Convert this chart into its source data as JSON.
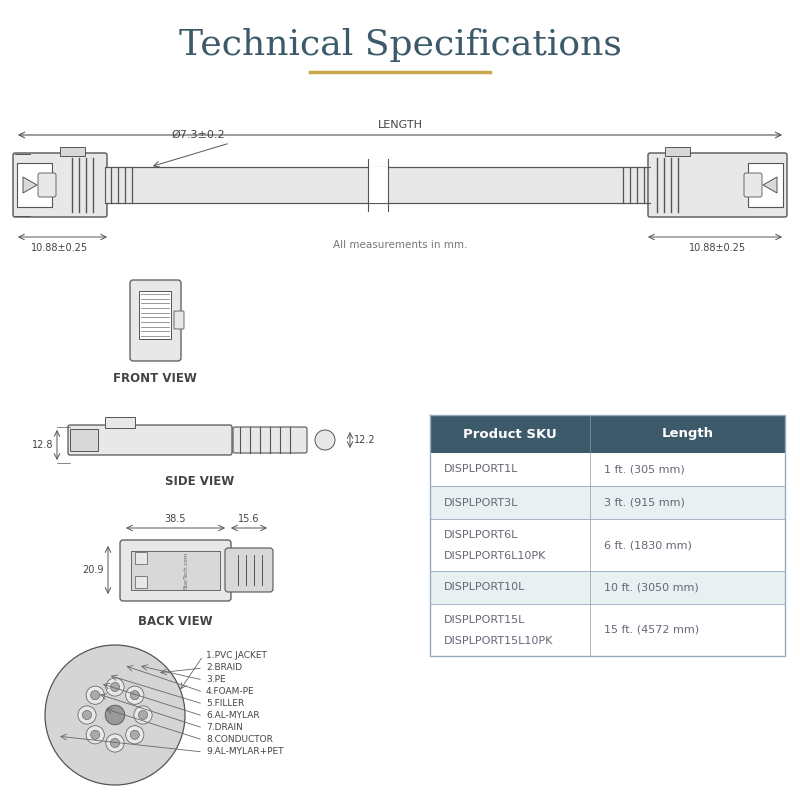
{
  "title": "Technical Specifications",
  "title_color": "#3d5a6b",
  "title_underline_color": "#c8a84b",
  "bg_color": "#ffffff",
  "line_color": "#555555",
  "dim_color": "#444444",
  "table_header_bg": "#3d5a6b",
  "table_header_color": "#ffffff",
  "table_row_alt_bg": "#e8f0f2",
  "table_row_bg": "#ffffff",
  "table_border_color": "#99aabb",
  "table_text_color": "#666677",
  "table_headers": [
    "Product SKU",
    "Length"
  ],
  "table_rows": [
    [
      "DISPLPORT1L",
      "1 ft. (305 mm)",
      false
    ],
    [
      "DISPLPORT3L",
      "3 ft. (915 mm)",
      true
    ],
    [
      "DISPLPORT6L\nDISPLPORT6L10PK",
      "6 ft. (1830 mm)",
      false
    ],
    [
      "DISPLPORT10L",
      "10 ft. (3050 mm)",
      true
    ],
    [
      "DISPLPORT15L\nDISPLPORT15L10PK",
      "15 ft. (4572 mm)",
      false
    ]
  ],
  "cable_length_label": "LENGTH",
  "cable_diameter_label": "Ø7.3±0.2",
  "cable_connector_left_label": "10.88±0.25",
  "cable_connector_right_label": "10.88±0.25",
  "all_measurements_label": "All measurements in mm.",
  "front_view_label": "FRONT VIEW",
  "side_view_label": "SIDE VIEW",
  "back_view_label": "BACK VIEW",
  "side_dim_left": "12.8",
  "side_dim_right": "12.2",
  "back_dim_width1": "38.5",
  "back_dim_width2": "15.6",
  "back_dim_height": "20.9",
  "cable_layers": [
    "1.PVC JACKET",
    "2.BRAID",
    "3.PE",
    "4.FOAM-PE",
    "5.FILLER",
    "6.AL-MYLAR",
    "7.DRAIN",
    "8.CONDUCTOR",
    "9.AL-MYLAR+PET"
  ]
}
